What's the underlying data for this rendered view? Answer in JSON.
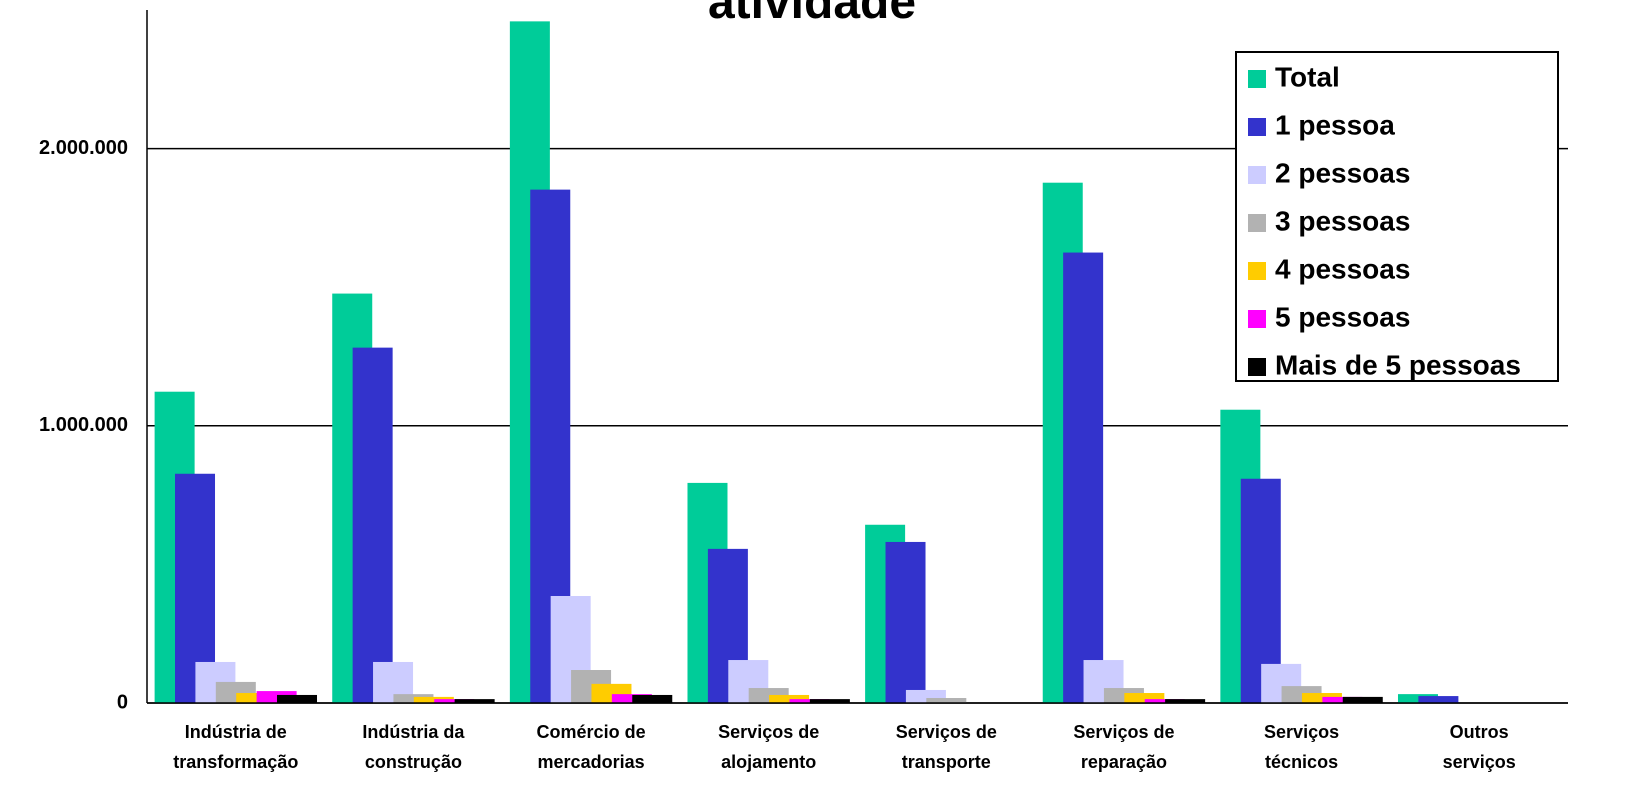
{
  "chart_data": {
    "type": "bar",
    "title": "atividade",
    "categories": [
      [
        "Indústria de",
        "transformação"
      ],
      [
        "Indústria da",
        "construção"
      ],
      [
        "Comércio de",
        "mercadorias"
      ],
      [
        "Serviços de",
        "alojamento"
      ],
      [
        "Serviços de",
        "transporte"
      ],
      [
        "Serviços de",
        "reparação"
      ],
      [
        "Serviços",
        "técnicos"
      ],
      [
        "Outros",
        "serviços"
      ]
    ],
    "series": [
      {
        "name": "Total",
        "color": "#00cc99",
        "values": [
          1123000,
          1477000,
          2459000,
          794000,
          643000,
          1877000,
          1058000,
          32000
        ]
      },
      {
        "name": "1 pessoa",
        "color": "#3333cc",
        "values": [
          827000,
          1282000,
          1852000,
          556000,
          581000,
          1625000,
          809000,
          25000
        ]
      },
      {
        "name": "2 pessoas",
        "color": "#ccccff",
        "values": [
          148000,
          148000,
          386000,
          155000,
          47000,
          155000,
          141000,
          0
        ]
      },
      {
        "name": "3 pessoas",
        "color": "#b2b2b2",
        "values": [
          76000,
          32000,
          119000,
          54000,
          18000,
          54000,
          61000,
          0
        ]
      },
      {
        "name": "4 pessoas",
        "color": "#ffcc00",
        "values": [
          36000,
          22000,
          69000,
          29000,
          0,
          36000,
          36000,
          0
        ]
      },
      {
        "name": "5 pessoas",
        "color": "#ff00ff",
        "values": [
          43000,
          14000,
          32000,
          14000,
          0,
          14000,
          22000,
          0
        ]
      },
      {
        "name": "Mais de 5 pessoas",
        "color": "#000000",
        "values": [
          29000,
          14000,
          29000,
          14000,
          0,
          14000,
          22000,
          0
        ]
      }
    ],
    "ylim": [
      0,
      2500000
    ],
    "yticks": [
      0,
      {
        "value": 1000000,
        "label": "1.000.000"
      },
      {
        "value": 2000000,
        "label": "2.000.000"
      }
    ],
    "grid": true,
    "legend": "top-right"
  }
}
